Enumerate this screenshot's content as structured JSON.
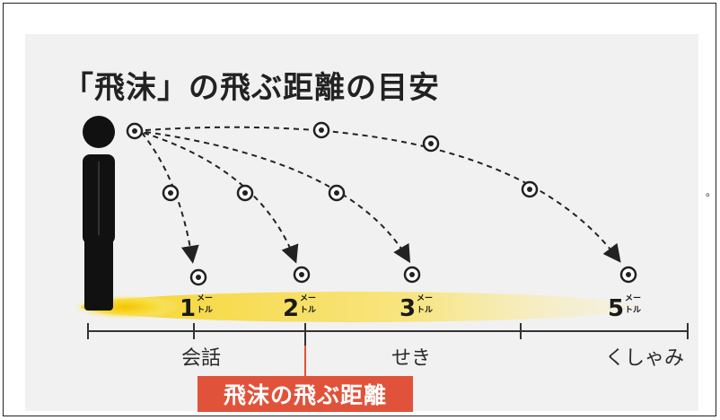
{
  "title": "「飛沫」の飛ぶ距離の目安",
  "side_mark": "。",
  "distances": [
    {
      "number": "1",
      "unit_top": "メー",
      "unit_bottom": "トル"
    },
    {
      "number": "2",
      "unit_top": "メー",
      "unit_bottom": "トル"
    },
    {
      "number": "3",
      "unit_top": "メー",
      "unit_bottom": "トル"
    },
    {
      "number": "5",
      "unit_top": "メー",
      "unit_bottom": "トル"
    }
  ],
  "categories": [
    "会話",
    "せき",
    "くしゃみ"
  ],
  "badge": "飛沫の飛ぶ距離",
  "colors": {
    "badge": "#e0533a",
    "ground_glow": "#f5d21a",
    "figure": "#111111"
  }
}
